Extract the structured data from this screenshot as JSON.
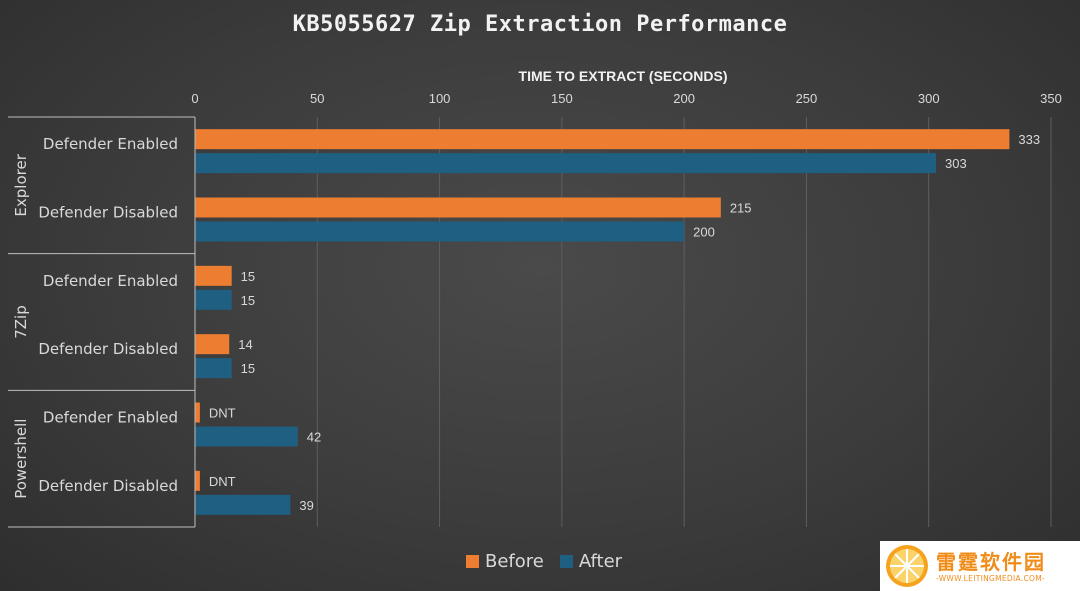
{
  "chart_data": {
    "type": "bar",
    "orientation": "horizontal",
    "title": "KB5055627 Zip Extraction Performance",
    "axis_title": "TIME TO EXTRACT (SECONDS)",
    "xlim": [
      0,
      350
    ],
    "ticks": [
      0,
      50,
      100,
      150,
      200,
      250,
      300,
      350
    ],
    "grid": true,
    "groups": [
      {
        "name": "Explorer",
        "categories": [
          "Defender Enabled",
          "Defender Disabled"
        ]
      },
      {
        "name": "7Zip",
        "categories": [
          "Defender Enabled",
          "Defender Disabled"
        ]
      },
      {
        "name": "Powershell",
        "categories": [
          "Defender Enabled",
          "Defender Disabled"
        ]
      }
    ],
    "series": [
      {
        "name": "Before",
        "color": "#ed7d31",
        "values": [
          333,
          215,
          15,
          14,
          2,
          2
        ],
        "labels": [
          "333",
          "215",
          "15",
          "14",
          "DNT",
          "DNT"
        ]
      },
      {
        "name": "After",
        "color": "#1f5f82",
        "values": [
          303,
          200,
          15,
          15,
          42,
          39
        ],
        "labels": [
          "303",
          "200",
          "15",
          "15",
          "42",
          "39"
        ]
      }
    ],
    "legend_position": "bottom"
  },
  "watermark": {
    "text_cn": "雷霆软件园",
    "url": "-WWW.LEITINGMEDIA.COM-"
  }
}
